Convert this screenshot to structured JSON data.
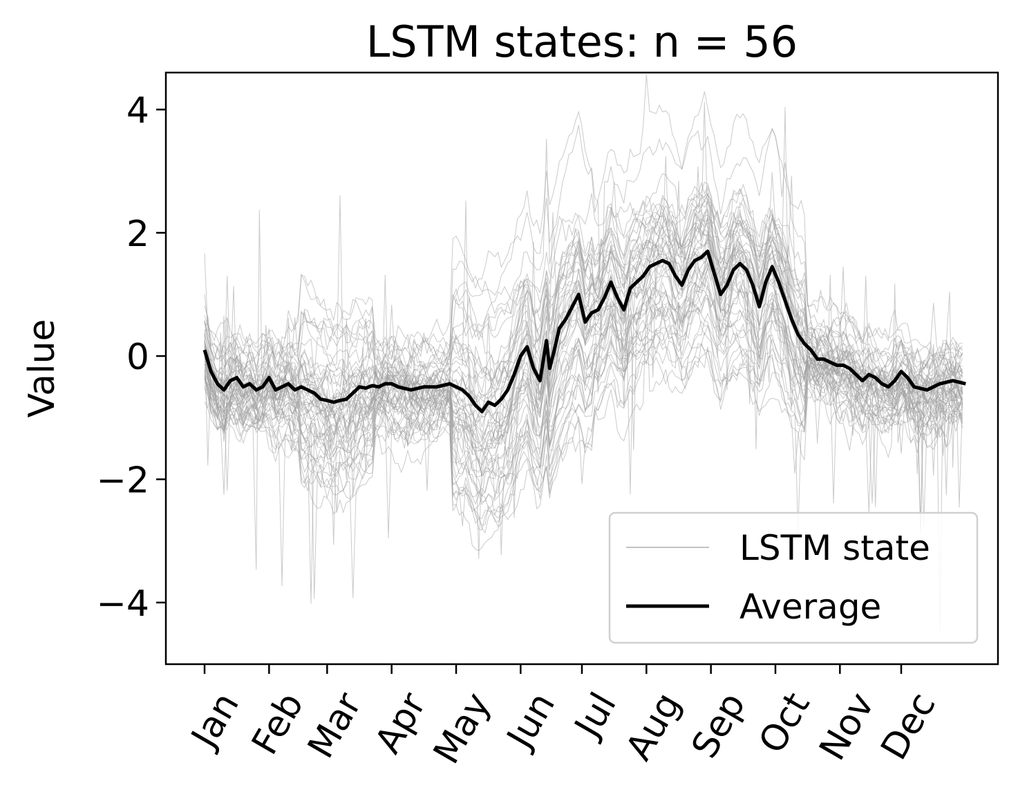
{
  "chart_data": {
    "type": "line",
    "title": "LSTM states: n = 56",
    "xlabel": "",
    "ylabel": "Value",
    "ylim": [
      -5.0,
      4.6
    ],
    "yticks": [
      4,
      2,
      0,
      -2,
      -4
    ],
    "ytick_labels": [
      "4",
      "2",
      "0",
      "−2",
      "−4"
    ],
    "xlim": [
      -0.6,
      12.3
    ],
    "xticks": [
      0,
      1,
      1.9,
      2.9,
      3.9,
      4.9,
      5.85,
      6.85,
      7.85,
      8.85,
      9.85,
      10.8
    ],
    "xtick_labels": [
      "Jan",
      "Feb",
      "Mar",
      "Apr",
      "May",
      "Jun",
      "Jul",
      "Aug",
      "Sep",
      "Oct",
      "Nov",
      "Dec"
    ],
    "grid": false,
    "legend": {
      "position": "lower-right",
      "entries": [
        "LSTM state",
        "Average"
      ]
    },
    "colors": {
      "state": "#9e9e9e",
      "average": "#000000"
    },
    "series": [
      {
        "name": "LSTM state",
        "role": "individual states (56 lines)",
        "count": 56,
        "values": []
      },
      {
        "name": "Average",
        "x": [
          0,
          0.1,
          0.2,
          0.3,
          0.4,
          0.5,
          0.6,
          0.7,
          0.8,
          0.9,
          1.0,
          1.1,
          1.2,
          1.3,
          1.4,
          1.5,
          1.6,
          1.7,
          1.8,
          1.9,
          2.0,
          2.1,
          2.2,
          2.3,
          2.4,
          2.5,
          2.6,
          2.7,
          2.8,
          2.9,
          3.0,
          3.2,
          3.4,
          3.6,
          3.8,
          3.9,
          4.0,
          4.1,
          4.2,
          4.3,
          4.4,
          4.5,
          4.6,
          4.7,
          4.8,
          4.9,
          5.0,
          5.1,
          5.2,
          5.3,
          5.35,
          5.4,
          5.5,
          5.6,
          5.7,
          5.8,
          5.9,
          6.0,
          6.1,
          6.2,
          6.3,
          6.4,
          6.5,
          6.6,
          6.7,
          6.8,
          6.9,
          7.0,
          7.1,
          7.2,
          7.3,
          7.4,
          7.5,
          7.6,
          7.7,
          7.8,
          7.9,
          8.0,
          8.1,
          8.2,
          8.3,
          8.4,
          8.5,
          8.6,
          8.7,
          8.8,
          8.9,
          9.0,
          9.1,
          9.2,
          9.3,
          9.4,
          9.5,
          9.6,
          9.7,
          9.8,
          9.9,
          10.0,
          10.1,
          10.2,
          10.3,
          10.4,
          10.5,
          10.6,
          10.7,
          10.8,
          10.9,
          11.0,
          11.2,
          11.4,
          11.6,
          11.8
        ],
        "values": [
          0.1,
          -0.25,
          -0.45,
          -0.55,
          -0.4,
          -0.35,
          -0.5,
          -0.45,
          -0.55,
          -0.5,
          -0.35,
          -0.55,
          -0.5,
          -0.45,
          -0.55,
          -0.5,
          -0.55,
          -0.6,
          -0.7,
          -0.72,
          -0.75,
          -0.72,
          -0.7,
          -0.6,
          -0.5,
          -0.52,
          -0.48,
          -0.5,
          -0.45,
          -0.45,
          -0.5,
          -0.55,
          -0.5,
          -0.5,
          -0.45,
          -0.5,
          -0.55,
          -0.65,
          -0.8,
          -0.9,
          -0.75,
          -0.8,
          -0.7,
          -0.55,
          -0.3,
          0.0,
          0.15,
          -0.2,
          -0.4,
          0.25,
          -0.2,
          0.0,
          0.45,
          0.6,
          0.8,
          1.0,
          0.55,
          0.7,
          0.75,
          0.95,
          1.2,
          0.95,
          0.75,
          1.1,
          1.2,
          1.3,
          1.45,
          1.5,
          1.55,
          1.5,
          1.3,
          1.15,
          1.4,
          1.55,
          1.6,
          1.7,
          1.35,
          1.0,
          1.15,
          1.4,
          1.5,
          1.4,
          1.15,
          0.8,
          1.2,
          1.45,
          1.2,
          0.9,
          0.6,
          0.35,
          0.2,
          0.1,
          -0.05,
          -0.05,
          -0.1,
          -0.15,
          -0.15,
          -0.2,
          -0.3,
          -0.4,
          -0.3,
          -0.35,
          -0.45,
          -0.5,
          -0.4,
          -0.25,
          -0.35,
          -0.5,
          -0.55,
          -0.45,
          -0.4,
          -0.45
        ]
      }
    ]
  }
}
